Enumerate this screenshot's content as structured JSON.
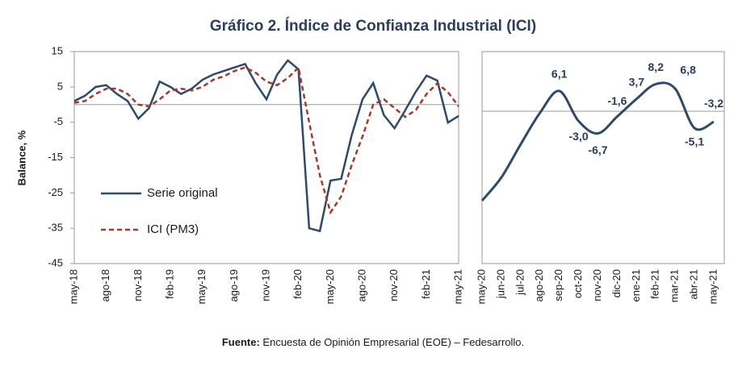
{
  "title": "Gráfico 2. Índice de Confianza Industrial (ICI)",
  "source": {
    "label": "Fuente:",
    "text": "Encuesta de Opinión Empresarial (EOE) – Fedesarrollo."
  },
  "chart_data": [
    {
      "type": "line",
      "ylabel": "Balance, %",
      "categories": [
        "may-18",
        null,
        null,
        "ago-18",
        null,
        null,
        "nov-18",
        null,
        null,
        "feb-19",
        null,
        null,
        "may-19",
        null,
        null,
        "ago-19",
        null,
        null,
        "nov-19",
        null,
        null,
        "feb-20",
        null,
        null,
        "may-20",
        null,
        null,
        "ago-20",
        null,
        null,
        "nov-20",
        null,
        null,
        "feb-21",
        null,
        null,
        "may-21"
      ],
      "ylim": [
        -45,
        15
      ],
      "yticks": [
        -45,
        -35,
        -25,
        -15,
        -5,
        5,
        15
      ],
      "legend": "lower-left",
      "series": [
        {
          "name": "Serie original",
          "color": "#2e4a6b",
          "values": [
            1,
            2.5,
            5,
            5.5,
            3,
            1,
            -4,
            -1,
            6.5,
            5,
            3,
            4.5,
            7,
            8.5,
            9.5,
            10.5,
            11.5,
            6,
            1.5,
            8.5,
            12.5,
            10,
            -35,
            -35.8,
            -21.5,
            -21,
            -8.5,
            1.5,
            6.1,
            -3.0,
            -6.7,
            -1.6,
            3.7,
            8.2,
            6.8,
            -5.1,
            -3.2
          ]
        },
        {
          "name": "ICI (PM3)",
          "color": "#a3382c",
          "dashed": true,
          "values": [
            0.5,
            1,
            3,
            4.5,
            4.5,
            3,
            0,
            -0.5,
            1.5,
            4,
            4.5,
            4,
            5,
            7,
            8,
            9.5,
            10.5,
            9,
            6.5,
            5.5,
            7.5,
            10.5,
            -5,
            -20,
            -30.5,
            -26,
            -17,
            -9,
            0,
            1.5,
            -1,
            -3.5,
            -1.5,
            3,
            6,
            3.5,
            -0.5
          ]
        }
      ]
    },
    {
      "type": "smooth-line",
      "categories": [
        "may-20",
        "jun-20",
        "jul-20",
        "ago-20",
        "sep-20",
        "oct-20",
        "nov-20",
        "dic-20",
        "ene-21",
        "feb-21",
        "mar-21",
        "abr-21",
        "may-21"
      ],
      "ylim": [
        -46,
        18
      ],
      "color": "#2e4a6b",
      "values": [
        -27,
        -20,
        -10,
        -0.5,
        6.1,
        -3.0,
        -6.7,
        -1.6,
        3.7,
        8.2,
        6.8,
        -5.1,
        -3.2
      ],
      "value_labels": [
        null,
        null,
        null,
        null,
        "6,1",
        "-3,0",
        "-6,7",
        "-1,6",
        "3,7",
        "8,2",
        "6,8",
        "-5,1",
        "-3,2"
      ]
    }
  ]
}
